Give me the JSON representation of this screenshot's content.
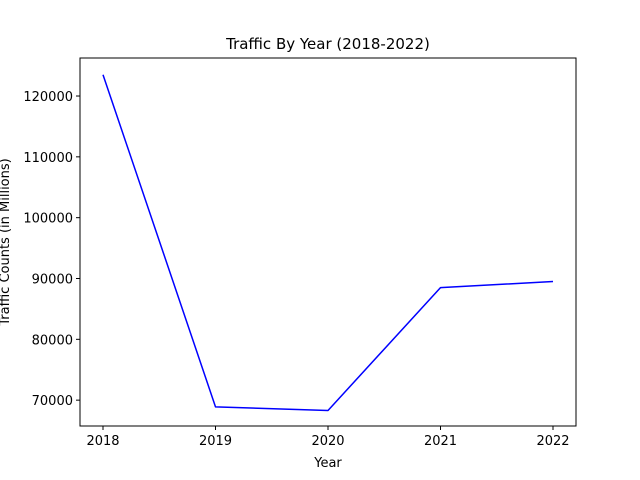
{
  "chart_data": {
    "type": "line",
    "title": "Traffic By Year (2018-2022)",
    "xlabel": "Year",
    "ylabel": "Traffic Counts (in Millions)",
    "x": [
      "2018",
      "2019",
      "2020",
      "2021",
      "2022"
    ],
    "series": [
      {
        "values": [
          123500,
          68900,
          68300,
          88500,
          89500
        ],
        "color": "#0000ff"
      }
    ],
    "yticks": [
      "70000",
      "80000",
      "90000",
      "100000",
      "110000",
      "120000"
    ],
    "ylim": [
      65750,
      126250
    ],
    "grid": false,
    "legend": false
  }
}
